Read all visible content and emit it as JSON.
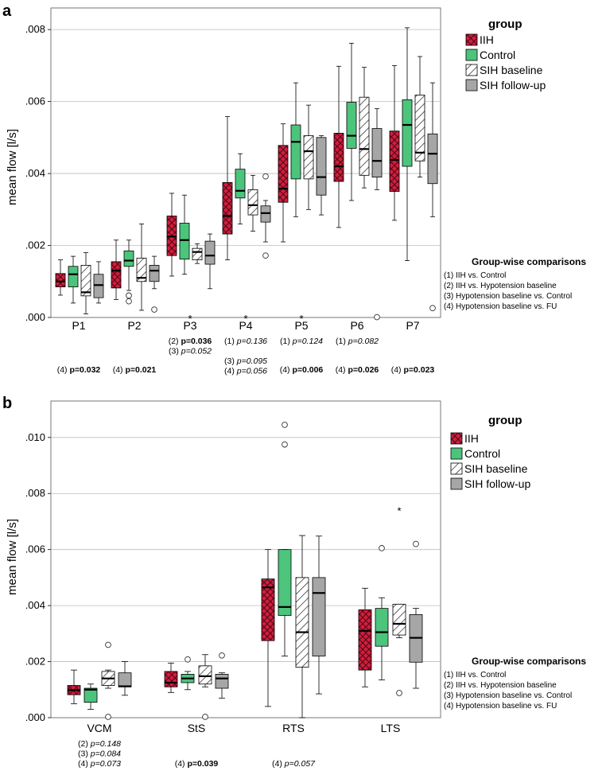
{
  "colors": {
    "iih": "#d21e3c",
    "control": "#4cc47c",
    "sih_baseline": "#ffffff",
    "sih_followup": "#a6a6a6",
    "grid": "#bdbdbd"
  },
  "legend": {
    "title": "group",
    "items": [
      "IIH",
      "Control",
      "SIH baseline",
      "SIH follow-up"
    ]
  },
  "comparisons": {
    "title": "Group-wise comparisons",
    "items": [
      "(1)  IIH vs. Control",
      "(2)  IIH vs. Hypotension baseline",
      "(3)  Hypotension baseline vs. Control",
      "(4)  Hypotension baseline vs. FU"
    ]
  },
  "chart_data": [
    {
      "panel": "a",
      "type": "boxplot",
      "ylabel": "mean flow [l/s]",
      "ylim": [
        0,
        0.0086
      ],
      "yticks": [
        ".000",
        ".002",
        ".004",
        ".006",
        ".008"
      ],
      "ytick_values": [
        0,
        0.002,
        0.004,
        0.006,
        0.008
      ],
      "categories": [
        "P1",
        "P2",
        "P3",
        "P4",
        "P5",
        "P6",
        "P7"
      ],
      "series": [
        {
          "name": "IIH",
          "boxes": [
            {
              "min": 0.00062,
              "q1": 0.00085,
              "med": 0.001,
              "q3": 0.00122,
              "max": 0.0016
            },
            {
              "min": 0.0005,
              "q1": 0.00082,
              "med": 0.0013,
              "q3": 0.00155,
              "max": 0.00215
            },
            {
              "min": 0.00115,
              "q1": 0.00172,
              "med": 0.00225,
              "q3": 0.00282,
              "max": 0.00345
            },
            {
              "min": 0.0016,
              "q1": 0.00232,
              "med": 0.00282,
              "q3": 0.00375,
              "max": 0.00558
            },
            {
              "min": 0.0021,
              "q1": 0.0032,
              "med": 0.00358,
              "q3": 0.00478,
              "max": 0.00538
            },
            {
              "min": 0.0025,
              "q1": 0.00378,
              "med": 0.0042,
              "q3": 0.00512,
              "max": 0.00698
            },
            {
              "min": 0.0027,
              "q1": 0.0035,
              "med": 0.00438,
              "q3": 0.00518,
              "max": 0.007
            }
          ],
          "outliers": [
            [],
            [],
            [],
            [],
            [],
            [],
            []
          ]
        },
        {
          "name": "Control",
          "boxes": [
            {
              "min": 0.0004,
              "q1": 0.00085,
              "med": 0.0012,
              "q3": 0.00142,
              "max": 0.0017
            },
            {
              "min": 0.00075,
              "q1": 0.00142,
              "med": 0.00158,
              "q3": 0.00185,
              "max": 0.00215
            },
            {
              "min": 0.0012,
              "q1": 0.00162,
              "med": 0.00215,
              "q3": 0.00262,
              "max": 0.0034
            },
            {
              "min": 0.0026,
              "q1": 0.00332,
              "med": 0.00352,
              "q3": 0.00412,
              "max": 0.00455
            },
            {
              "min": 0.0028,
              "q1": 0.00385,
              "med": 0.00488,
              "q3": 0.00535,
              "max": 0.00652
            },
            {
              "min": 0.00325,
              "q1": 0.0047,
              "med": 0.00505,
              "q3": 0.00598,
              "max": 0.00762
            },
            {
              "min": 0.00158,
              "q1": 0.0042,
              "med": 0.00535,
              "q3": 0.00605,
              "max": 0.00805
            }
          ],
          "outliers": [
            [],
            [
              0.00061,
              0.00045
            ],
            [],
            [],
            [],
            [],
            []
          ]
        },
        {
          "name": "SIH baseline",
          "boxes": [
            {
              "min": 0.0001,
              "q1": 0.0006,
              "med": 0.0007,
              "q3": 0.00145,
              "max": 0.0018
            },
            {
              "min": 0.0002,
              "q1": 0.001,
              "med": 0.0011,
              "q3": 0.00165,
              "max": 0.0026
            },
            {
              "min": 0.0015,
              "q1": 0.0016,
              "med": 0.00182,
              "q3": 0.00192,
              "max": 0.00205
            },
            {
              "min": 0.0024,
              "q1": 0.00285,
              "med": 0.00312,
              "q3": 0.00355,
              "max": 0.00395
            },
            {
              "min": 0.003,
              "q1": 0.00385,
              "med": 0.00462,
              "q3": 0.00505,
              "max": 0.0059
            },
            {
              "min": 0.0036,
              "q1": 0.00395,
              "med": 0.00468,
              "q3": 0.00612,
              "max": 0.00695
            },
            {
              "min": 0.0039,
              "q1": 0.00435,
              "med": 0.00458,
              "q3": 0.00618,
              "max": 0.00725
            }
          ],
          "outliers": [
            [],
            [],
            [],
            [],
            [],
            [],
            []
          ]
        },
        {
          "name": "SIH follow-up",
          "boxes": [
            {
              "min": 0.0004,
              "q1": 0.00055,
              "med": 0.0009,
              "q3": 0.0012,
              "max": 0.00155
            },
            {
              "min": 0.0008,
              "q1": 0.001,
              "med": 0.0013,
              "q3": 0.00145,
              "max": 0.0017
            },
            {
              "min": 0.0008,
              "q1": 0.00148,
              "med": 0.00172,
              "q3": 0.00212,
              "max": 0.00232
            },
            {
              "min": 0.0021,
              "q1": 0.00265,
              "med": 0.0029,
              "q3": 0.0031,
              "max": 0.00325
            },
            {
              "min": 0.00285,
              "q1": 0.0034,
              "med": 0.0039,
              "q3": 0.005,
              "max": 0.00505
            },
            {
              "min": 0.00355,
              "q1": 0.0039,
              "med": 0.00435,
              "q3": 0.00525,
              "max": 0.0058
            },
            {
              "min": 0.0028,
              "q1": 0.00372,
              "med": 0.00455,
              "q3": 0.0051,
              "max": 0.00652
            }
          ],
          "outliers": [
            [],
            [
              0.00022
            ],
            [],
            [
              0.00392,
              0.00172
            ],
            [],
            [
              1e-05
            ],
            [
              0.00026
            ]
          ]
        }
      ],
      "extremes": [
        {
          "category": "P3",
          "value": 2e-05
        },
        {
          "category": "P4",
          "value": 2e-05
        },
        {
          "category": "P5",
          "value": 2e-05
        }
      ],
      "pvalue_rows": [
        {
          "category": "P3",
          "lines": [
            {
              "num": "(2) ",
              "p": "p=0.036",
              "bold": true
            },
            {
              "num": "(3) ",
              "p": "p=0.052",
              "bold": false
            }
          ]
        },
        {
          "category": "P4",
          "lines": [
            {
              "num": "(1) ",
              "p": "p=0.136",
              "bold": false
            },
            {
              "num": "",
              "p": "",
              "bold": false
            },
            {
              "num": "(3) ",
              "p": "p=0.095",
              "bold": false
            },
            {
              "num": "(4) ",
              "p": "p=0.056",
              "bold": false
            }
          ]
        },
        {
          "category": "P5",
          "lines": [
            {
              "num": "(1) ",
              "p": "p=0.124",
              "bold": false
            }
          ]
        },
        {
          "category": "P6",
          "lines": [
            {
              "num": "(1) ",
              "p": "p=0.082",
              "bold": false
            }
          ]
        }
      ],
      "pvalue_bottom": [
        {
          "category": "P1",
          "num": "(4) ",
          "p": "p=0.032",
          "bold": true
        },
        {
          "category": "P2",
          "num": "(4) ",
          "p": "p=0.021",
          "bold": true
        },
        {
          "category": "P5",
          "num": "(4) ",
          "p": "p=0.006",
          "bold": true
        },
        {
          "category": "P6",
          "num": "(4) ",
          "p": "p=0.026",
          "bold": true
        },
        {
          "category": "P7",
          "num": "(4) ",
          "p": "p=0.023",
          "bold": true
        }
      ]
    },
    {
      "panel": "b",
      "type": "boxplot",
      "ylabel": "mean flow [l/s]",
      "ylim": [
        0,
        0.0113
      ],
      "yticks": [
        ".000",
        ".002",
        ".004",
        ".006",
        ".008",
        ".010"
      ],
      "ytick_values": [
        0,
        0.002,
        0.004,
        0.006,
        0.008,
        0.01
      ],
      "categories": [
        "VCM",
        "StS",
        "RTS",
        "LTS"
      ],
      "series": [
        {
          "name": "IIH",
          "boxes": [
            {
              "min": 0.0005,
              "q1": 0.00082,
              "med": 0.00098,
              "q3": 0.00115,
              "max": 0.0017
            },
            {
              "min": 0.0009,
              "q1": 0.0011,
              "med": 0.00125,
              "q3": 0.00165,
              "max": 0.00195
            },
            {
              "min": 0.0004,
              "q1": 0.00275,
              "med": 0.00465,
              "q3": 0.00495,
              "max": 0.006
            },
            {
              "min": 0.0011,
              "q1": 0.0017,
              "med": 0.0031,
              "q3": 0.00385,
              "max": 0.00462
            }
          ],
          "outliers": [
            [],
            [],
            [],
            []
          ]
        },
        {
          "name": "Control",
          "boxes": [
            {
              "min": 0.0003,
              "q1": 0.00055,
              "med": 0.001,
              "q3": 0.00105,
              "max": 0.0012
            },
            {
              "min": 0.001,
              "q1": 0.00125,
              "med": 0.0014,
              "q3": 0.00155,
              "max": 0.00165
            },
            {
              "min": 0.0022,
              "q1": 0.00365,
              "med": 0.00395,
              "q3": 0.006,
              "max": 0.006
            },
            {
              "min": 0.00135,
              "q1": 0.00255,
              "med": 0.00305,
              "q3": 0.0039,
              "max": 0.00428
            }
          ],
          "outliers": [
            [],
            [
              0.00208
            ],
            [
              0.01045,
              0.00975
            ],
            [
              0.00605
            ]
          ]
        },
        {
          "name": "SIH baseline",
          "boxes": [
            {
              "min": 0.00105,
              "q1": 0.00115,
              "med": 0.0014,
              "q3": 0.00165,
              "max": 0.0017
            },
            {
              "min": 0.0011,
              "q1": 0.0012,
              "med": 0.00148,
              "q3": 0.00185,
              "max": 0.00225
            },
            {
              "min": 0.0,
              "q1": 0.0018,
              "med": 0.00305,
              "q3": 0.005,
              "max": 0.0065
            },
            {
              "min": 0.00285,
              "q1": 0.00295,
              "med": 0.00335,
              "q3": 0.00405,
              "max": 0.00405
            }
          ],
          "outliers": [
            [
              0.0026,
              3e-05
            ],
            [
              3e-05
            ],
            [],
            [
              0.00088
            ]
          ]
        },
        {
          "name": "SIH follow-up",
          "boxes": [
            {
              "min": 0.0008,
              "q1": 0.0011,
              "med": 0.00112,
              "q3": 0.0016,
              "max": 0.002
            },
            {
              "min": 0.0007,
              "q1": 0.00105,
              "med": 0.0014,
              "q3": 0.00155,
              "max": 0.0016
            },
            {
              "min": 0.00085,
              "q1": 0.0022,
              "med": 0.00445,
              "q3": 0.005,
              "max": 0.00648
            },
            {
              "min": 0.00105,
              "q1": 0.00198,
              "med": 0.00285,
              "q3": 0.00368,
              "max": 0.0039
            }
          ],
          "outliers": [
            [],
            [
              0.00222
            ],
            [],
            [
              0.0062
            ]
          ]
        }
      ],
      "extremes": [
        {
          "category": "LTS",
          "series": "SIH baseline",
          "value": 0.00745
        }
      ],
      "pvalue_rows": [
        {
          "category": "VCM",
          "lines": [
            {
              "num": "(2) ",
              "p": "p=0.148",
              "bold": false
            },
            {
              "num": "(3) ",
              "p": "p=0.084",
              "bold": false
            },
            {
              "num": "(4) ",
              "p": "p=0.073",
              "bold": false
            }
          ]
        },
        {
          "category": "StS",
          "lines": [
            {
              "num": "",
              "p": "",
              "bold": false
            },
            {
              "num": "",
              "p": "",
              "bold": false
            },
            {
              "num": "(4) ",
              "p": "p=0.039",
              "bold": true
            }
          ]
        },
        {
          "category": "RTS",
          "lines": [
            {
              "num": "",
              "p": "",
              "bold": false
            },
            {
              "num": "",
              "p": "",
              "bold": false
            },
            {
              "num": "(4) ",
              "p": "p=0.057",
              "bold": false
            }
          ]
        }
      ],
      "pvalue_bottom": []
    }
  ]
}
